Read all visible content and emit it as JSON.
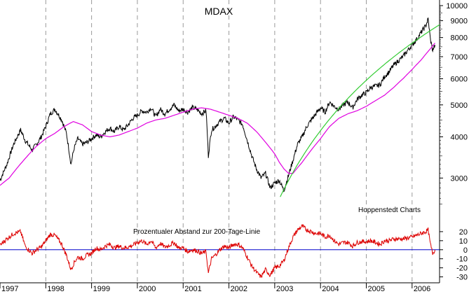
{
  "chart_data": [
    {
      "type": "line",
      "title": "MDAX",
      "yscale": "log",
      "ylim": [
        2400,
        10000
      ],
      "yticks": [
        3000,
        4000,
        5000,
        6000,
        7000,
        8000,
        9000,
        10000
      ],
      "ytick_labels": [
        "3000",
        "4000",
        "5000",
        "6000",
        "7000",
        "8000",
        "9000",
        "10000"
      ],
      "xlim": [
        1997.0,
        2006.6
      ],
      "year_labels": [
        "1997",
        "1998",
        "1999",
        "2000",
        "2001",
        "2002",
        "2003",
        "2004",
        "2005",
        "2006"
      ],
      "grid": "vertical dashed at year boundaries",
      "source_note": "Hoppenstedt Charts",
      "series": [
        {
          "color": "#000000",
          "x": [
            1997.0,
            1997.15,
            1997.3,
            1997.45,
            1997.55,
            1997.7,
            1997.8,
            1997.9,
            1998.0,
            1998.1,
            1998.2,
            1998.35,
            1998.45,
            1998.55,
            1998.62,
            1998.7,
            1998.8,
            1998.9,
            1999.0,
            1999.1,
            1999.2,
            1999.3,
            1999.4,
            1999.5,
            1999.6,
            1999.7,
            1999.8,
            1999.9,
            2000.0,
            2000.1,
            2000.2,
            2000.3,
            2000.4,
            2000.5,
            2000.6,
            2000.7,
            2000.8,
            2000.9,
            2001.0,
            2001.1,
            2001.2,
            2001.3,
            2001.4,
            2001.5,
            2001.55,
            2001.62,
            2001.7,
            2001.8,
            2001.9,
            2002.0,
            2002.1,
            2002.2,
            2002.3,
            2002.4,
            2002.5,
            2002.6,
            2002.7,
            2002.8,
            2002.9,
            2003.0,
            2003.1,
            2003.2,
            2003.3,
            2003.4,
            2003.5,
            2003.6,
            2003.7,
            2003.8,
            2003.9,
            2004.0,
            2004.1,
            2004.2,
            2004.3,
            2004.4,
            2004.5,
            2004.6,
            2004.7,
            2004.8,
            2004.9,
            2005.0,
            2005.1,
            2005.2,
            2005.3,
            2005.4,
            2005.5,
            2005.6,
            2005.7,
            2005.8,
            2005.9,
            2006.0,
            2006.1,
            2006.2,
            2006.3,
            2006.35,
            2006.4,
            2006.45,
            2006.5
          ],
          "y": [
            2950,
            3300,
            3800,
            4200,
            3900,
            3650,
            3800,
            4000,
            4300,
            4700,
            4850,
            4500,
            4100,
            3300,
            3700,
            3950,
            3800,
            3850,
            3950,
            4050,
            4000,
            4150,
            4250,
            4150,
            4300,
            4200,
            4350,
            4550,
            4650,
            4800,
            4750,
            4900,
            4600,
            4850,
            4700,
            4850,
            5000,
            4800,
            4850,
            4750,
            4900,
            4850,
            4700,
            4800,
            3500,
            4200,
            4300,
            4450,
            4550,
            4400,
            4600,
            4500,
            4350,
            3900,
            3500,
            3200,
            3000,
            3100,
            2800,
            2900,
            2950,
            2750,
            3050,
            3400,
            3800,
            4000,
            4300,
            4500,
            4700,
            4900,
            4750,
            5100,
            4950,
            4850,
            5000,
            5100,
            4900,
            5200,
            5350,
            5450,
            5650,
            5700,
            5750,
            6100,
            6300,
            6600,
            6800,
            7000,
            7300,
            7600,
            7900,
            8300,
            8700,
            9100,
            7900,
            7300,
            7600
          ]
        },
        {
          "color": "#e000e0",
          "x": [
            1997.0,
            1997.2,
            1997.4,
            1997.6,
            1997.8,
            1998.0,
            1998.2,
            1998.4,
            1998.6,
            1998.8,
            1999.0,
            1999.2,
            1999.4,
            1999.6,
            1999.8,
            2000.0,
            2000.2,
            2000.4,
            2000.6,
            2000.8,
            2001.0,
            2001.2,
            2001.4,
            2001.6,
            2001.8,
            2002.0,
            2002.2,
            2002.4,
            2002.6,
            2002.8,
            2003.0,
            2003.1,
            2003.2,
            2003.3,
            2003.4,
            2003.6,
            2003.8,
            2004.0,
            2004.2,
            2004.4,
            2004.6,
            2004.8,
            2005.0,
            2005.2,
            2005.4,
            2005.6,
            2005.8,
            2006.0,
            2006.2,
            2006.4,
            2006.5
          ],
          "y": [
            2850,
            3000,
            3250,
            3500,
            3750,
            3950,
            4100,
            4300,
            4450,
            4350,
            4150,
            4050,
            4000,
            4050,
            4150,
            4250,
            4400,
            4500,
            4550,
            4650,
            4750,
            4850,
            4900,
            4850,
            4750,
            4650,
            4550,
            4400,
            4150,
            3850,
            3550,
            3350,
            3200,
            3100,
            3100,
            3350,
            3650,
            3950,
            4300,
            4550,
            4700,
            4800,
            4950,
            5150,
            5350,
            5650,
            6000,
            6400,
            6850,
            7400,
            7700
          ]
        },
        {
          "color": "#33cc33",
          "x": [
            2003.12,
            2006.6
          ],
          "y": [
            2630,
            8750
          ]
        }
      ]
    },
    {
      "type": "line",
      "title": "Prozentualer Abstand zur 200-Tage-Linie",
      "ylim": [
        -35,
        30
      ],
      "yticks": [
        -30,
        -20,
        -10,
        0,
        10,
        20
      ],
      "ytick_labels": [
        "-30",
        "-20",
        "-10",
        "0",
        "10",
        "20"
      ],
      "zero_line_color": "#0000cc",
      "series": [
        {
          "color": "#dd0000",
          "x": [
            1997.0,
            1997.15,
            1997.3,
            1997.45,
            1997.55,
            1997.7,
            1997.8,
            1997.9,
            1998.0,
            1998.1,
            1998.2,
            1998.35,
            1998.45,
            1998.55,
            1998.62,
            1998.7,
            1998.8,
            1998.9,
            1999.0,
            1999.1,
            1999.2,
            1999.3,
            1999.4,
            1999.5,
            1999.6,
            1999.7,
            1999.8,
            1999.9,
            2000.0,
            2000.1,
            2000.2,
            2000.3,
            2000.4,
            2000.5,
            2000.6,
            2000.7,
            2000.8,
            2000.9,
            2001.0,
            2001.1,
            2001.2,
            2001.3,
            2001.4,
            2001.5,
            2001.55,
            2001.62,
            2001.7,
            2001.8,
            2001.9,
            2002.0,
            2002.1,
            2002.2,
            2002.3,
            2002.4,
            2002.5,
            2002.6,
            2002.7,
            2002.8,
            2002.9,
            2003.0,
            2003.1,
            2003.2,
            2003.3,
            2003.4,
            2003.5,
            2003.6,
            2003.7,
            2003.8,
            2003.9,
            2004.0,
            2004.1,
            2004.2,
            2004.3,
            2004.4,
            2004.5,
            2004.6,
            2004.7,
            2004.8,
            2004.9,
            2005.0,
            2005.1,
            2005.2,
            2005.3,
            2005.4,
            2005.5,
            2005.6,
            2005.7,
            2005.8,
            2005.9,
            2006.0,
            2006.1,
            2006.2,
            2006.3,
            2006.35,
            2006.4,
            2006.45,
            2006.5
          ],
          "y": [
            5,
            12,
            18,
            20,
            4,
            -4,
            0,
            3,
            10,
            17,
            16,
            6,
            -6,
            -22,
            -14,
            -8,
            -10,
            -6,
            -4,
            2,
            0,
            4,
            6,
            2,
            4,
            2,
            3,
            5,
            8,
            10,
            6,
            10,
            2,
            7,
            3,
            5,
            8,
            2,
            2,
            -2,
            0,
            -1,
            -4,
            -2,
            -26,
            -10,
            -6,
            0,
            4,
            2,
            6,
            6,
            2,
            -8,
            -18,
            -25,
            -30,
            -22,
            -28,
            -20,
            -18,
            -12,
            2,
            14,
            22,
            26,
            22,
            20,
            18,
            18,
            14,
            16,
            10,
            6,
            8,
            8,
            4,
            8,
            9,
            9,
            10,
            8,
            6,
            10,
            10,
            12,
            12,
            12,
            13,
            14,
            16,
            18,
            20,
            22,
            6,
            -4,
            0
          ]
        }
      ]
    }
  ]
}
